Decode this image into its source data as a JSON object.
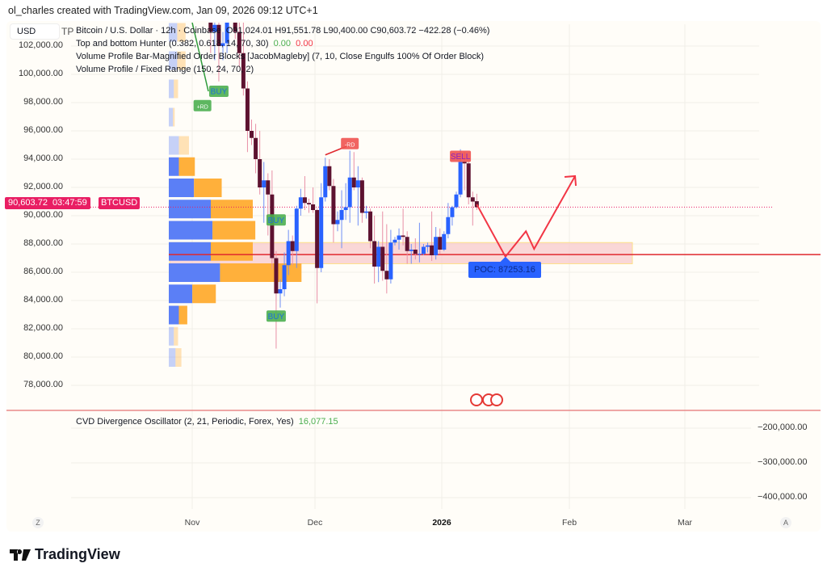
{
  "credit": "ol_charles created with TradingView.com, Jan 09, 2026 09:12 UTC+1",
  "currency": "USD",
  "legend": {
    "symbol": "Bitcoin / U.S. Dollar · 12h · Coinbase",
    "ohlc": "O91,024.01  H91,551.78  L90,400.00  C90,603.72  −422.28 (−0.46%)",
    "ind1": "Top and bottom Hunter (0.382, 0.618, 14, 70, 30)",
    "ind1_v1": "0.00",
    "ind1_v2": "0.00",
    "ind2": "Volume Profile Bar-Magnified Order Blocks [JacobMagleby] (7, 10, Close Engulfs 100% Of Order Block)",
    "ind3": "Volume Profile / Fixed Range (150, 24, 70, 2)",
    "tp": "TP"
  },
  "price_badge": {
    "price": "90,603.72",
    "countdown": "03:47:59",
    "symbol": "BTCUSD"
  },
  "oscillator": {
    "title": "CVD Divergence Oscillator (2, 21, Periodic, Forex, Yes)",
    "value": "16,077.15",
    "ticks": [
      "−200,000.00",
      "−300,000.00",
      "−400,000.00"
    ]
  },
  "time_axis": {
    "labels": [
      "Nov",
      "Dec",
      "2026",
      "Feb",
      "Mar"
    ],
    "left_btn": "Z",
    "right_btn": "A"
  },
  "footer": {
    "brand": "TradingView"
  },
  "colors": {
    "up": "#2962ff",
    "down": "#5d1230",
    "buy": "#4caf50",
    "sell": "#f05350",
    "accent": "#e91e63",
    "poc": "#2962ff"
  },
  "chart_data": {
    "type": "candlestick",
    "symbol": "BTCUSD",
    "interval": "12h",
    "y_ticks": [
      "102,000.00",
      "100,000.00",
      "98,000.00",
      "96,000.00",
      "94,000.00",
      "92,000.00",
      "90,000.00",
      "88,000.00",
      "86,000.00",
      "84,000.00",
      "82,000.00",
      "80,000.00",
      "78,000.00"
    ],
    "ylim": [
      77000,
      103000
    ],
    "candles": [
      [
        "2025-11-05",
        104000,
        105500,
        101500,
        103000
      ],
      [
        "2025-11-06",
        103000,
        104500,
        101000,
        103500
      ],
      [
        "2025-11-07",
        103500,
        104000,
        99500,
        102000
      ],
      [
        "2025-11-08",
        102000,
        103000,
        101000,
        102200
      ],
      [
        "2025-11-09",
        102200,
        105000,
        101500,
        104500
      ],
      [
        "2025-11-10",
        104500,
        106500,
        104000,
        105000
      ],
      [
        "2025-11-11",
        105000,
        105500,
        102500,
        103000
      ],
      [
        "2025-11-12",
        103000,
        104500,
        100500,
        101500
      ],
      [
        "2025-11-13",
        101500,
        104000,
        98500,
        99000
      ],
      [
        "2025-11-14",
        99000,
        99500,
        94500,
        96000
      ],
      [
        "2025-11-15",
        96000,
        96800,
        95000,
        95500
      ],
      [
        "2025-11-16",
        95500,
        96500,
        93000,
        94000
      ],
      [
        "2025-11-17",
        94000,
        96000,
        91500,
        92000
      ],
      [
        "2025-11-18",
        92000,
        93800,
        89500,
        92500
      ],
      [
        "2025-11-19",
        92500,
        93000,
        88600,
        91500
      ],
      [
        "2025-11-20",
        91500,
        93200,
        86200,
        87000
      ],
      [
        "2025-11-21",
        87000,
        87500,
        80600,
        84500
      ],
      [
        "2025-11-22",
        84500,
        85500,
        83500,
        84800
      ],
      [
        "2025-11-23",
        84800,
        87400,
        84300,
        86500
      ],
      [
        "2025-11-24",
        86500,
        89000,
        85800,
        88200
      ],
      [
        "2025-11-25",
        88200,
        88600,
        86500,
        87500
      ],
      [
        "2025-11-26",
        87500,
        90700,
        86300,
        90500
      ],
      [
        "2025-11-27",
        90500,
        91900,
        90000,
        91300
      ],
      [
        "2025-11-28",
        91300,
        92800,
        90400,
        90900
      ],
      [
        "2025-11-29",
        90900,
        91200,
        90200,
        90800
      ],
      [
        "2025-11-30",
        90800,
        92000,
        90200,
        90400
      ],
      [
        "2025-12-01",
        90400,
        90500,
        83800,
        86300
      ],
      [
        "2025-12-02",
        86300,
        92300,
        86000,
        91300
      ],
      [
        "2025-12-03",
        91300,
        94100,
        91000,
        93500
      ],
      [
        "2025-12-04",
        93500,
        94000,
        91800,
        92100
      ],
      [
        "2025-12-05",
        92100,
        92600,
        88100,
        89400
      ],
      [
        "2025-12-06",
        89400,
        90300,
        88900,
        89700
      ],
      [
        "2025-12-07",
        89700,
        91800,
        87700,
        90400
      ],
      [
        "2025-12-08",
        90400,
        92300,
        89700,
        90600
      ],
      [
        "2025-12-09",
        90600,
        94600,
        89500,
        92700
      ],
      [
        "2025-12-10",
        92700,
        94500,
        91800,
        92000
      ],
      [
        "2025-12-11",
        92000,
        93500,
        89300,
        92500
      ],
      [
        "2025-12-12",
        92500,
        92700,
        89500,
        90200
      ],
      [
        "2025-12-13",
        90200,
        90700,
        89800,
        90300
      ],
      [
        "2025-12-14",
        90300,
        90500,
        87700,
        88200
      ],
      [
        "2025-12-15",
        88200,
        90000,
        85200,
        86400
      ],
      [
        "2025-12-16",
        86400,
        88200,
        85300,
        87800
      ],
      [
        "2025-12-17",
        87800,
        90300,
        85400,
        86100
      ],
      [
        "2025-12-18",
        86100,
        89400,
        84500,
        85500
      ],
      [
        "2025-12-19",
        85500,
        89000,
        85200,
        88100
      ],
      [
        "2025-12-20",
        88100,
        88500,
        87900,
        88300
      ],
      [
        "2025-12-21",
        88300,
        89100,
        87600,
        88600
      ],
      [
        "2025-12-22",
        88600,
        90500,
        87900,
        88500
      ],
      [
        "2025-12-23",
        88500,
        88900,
        86600,
        87500
      ],
      [
        "2025-12-24",
        87500,
        88000,
        86600,
        87600
      ],
      [
        "2025-12-25",
        87600,
        88400,
        86900,
        87300
      ],
      [
        "2025-12-26",
        87300,
        89500,
        86700,
        87300
      ],
      [
        "2025-12-27",
        87300,
        88000,
        87200,
        87800
      ],
      [
        "2025-12-28",
        87800,
        88100,
        87400,
        87900
      ],
      [
        "2025-12-29",
        87900,
        90300,
        86800,
        87200
      ],
      [
        "2025-12-30",
        87200,
        89200,
        86900,
        88500
      ],
      [
        "2025-12-31",
        88500,
        89100,
        87300,
        87600
      ],
      [
        "2026-01-01",
        87600,
        88900,
        87500,
        88700
      ],
      [
        "2026-01-02",
        88700,
        90900,
        88400,
        89900
      ],
      [
        "2026-01-03",
        89900,
        90700,
        89300,
        90600
      ],
      [
        "2026-01-04",
        90600,
        91700,
        90500,
        91500
      ],
      [
        "2026-01-05",
        91500,
        94700,
        91300,
        93800
      ],
      [
        "2026-01-06",
        93800,
        94500,
        91800,
        93700
      ],
      [
        "2026-01-07",
        93700,
        93800,
        90800,
        91300
      ],
      [
        "2026-01-08",
        91300,
        91700,
        89300,
        91000
      ],
      [
        "2026-01-09",
        91024.01,
        91551.78,
        90400,
        90603.72
      ]
    ],
    "volume_profile": [
      {
        "price": 103000,
        "buy": 2,
        "sell": 2,
        "faded": true
      },
      {
        "price": 101000,
        "buy": 2,
        "sell": 2,
        "faded": true
      },
      {
        "price": 99000,
        "buy": 1.2,
        "sell": 1,
        "faded": true
      },
      {
        "price": 97000,
        "buy": 1,
        "sell": 0.4,
        "faded": true
      },
      {
        "price": 95000,
        "buy": 2.4,
        "sell": 2.4,
        "faded": true
      },
      {
        "price": 93500,
        "buy": 2.4,
        "sell": 3.8
      },
      {
        "price": 92000,
        "buy": 6,
        "sell": 6.6
      },
      {
        "price": 90500,
        "buy": 10,
        "sell": 10
      },
      {
        "price": 89000,
        "buy": 10.4,
        "sell": 10.2
      },
      {
        "price": 87500,
        "buy": 10,
        "sell": 10
      },
      {
        "price": 86000,
        "buy": 12.2,
        "sell": 19.4
      },
      {
        "price": 84500,
        "buy": 5.6,
        "sell": 5.6
      },
      {
        "price": 83000,
        "buy": 2.4,
        "sell": 2
      },
      {
        "price": 81500,
        "buy": 1.2,
        "sell": 1,
        "faded": true
      },
      {
        "price": 80000,
        "buy": 1.6,
        "sell": 1.4,
        "faded": true
      }
    ],
    "poc": {
      "label": "POC: 87253.16",
      "price": 87253.16
    },
    "zone": {
      "from": "2025-10-26",
      "to": "2026-02-16",
      "low": 86600,
      "high": 88100
    },
    "current_price": 90603.72,
    "signals": [
      {
        "label": "BUY",
        "date": "2025-11-07",
        "price": 98800,
        "color": "#4caf50"
      },
      {
        "label": "+RD",
        "date": "2025-11-03",
        "price": 98700,
        "color": "#4caf50"
      },
      {
        "label": "BUY",
        "date": "2025-11-21",
        "price": 89700,
        "color": "#4caf50"
      },
      {
        "label": "BUY",
        "date": "2025-11-21",
        "price": 82900,
        "color": "#4caf50"
      },
      {
        "label": "-RD",
        "date": "2025-12-09",
        "price": 95100,
        "color": "#f05350"
      },
      {
        "label": "SELL",
        "date": "2026-01-05",
        "price": 94200,
        "color": "#f05350"
      }
    ],
    "rd_line": [
      [
        "2025-12-03",
        94300
      ],
      [
        "2025-12-09",
        95000
      ]
    ],
    "projection": [
      [
        "2026-01-09",
        90800
      ],
      [
        "2026-01-16",
        87100
      ],
      [
        "2026-01-21",
        88900
      ],
      [
        "2026-01-23",
        87650
      ],
      [
        "2026-02-02",
        92800
      ]
    ]
  }
}
